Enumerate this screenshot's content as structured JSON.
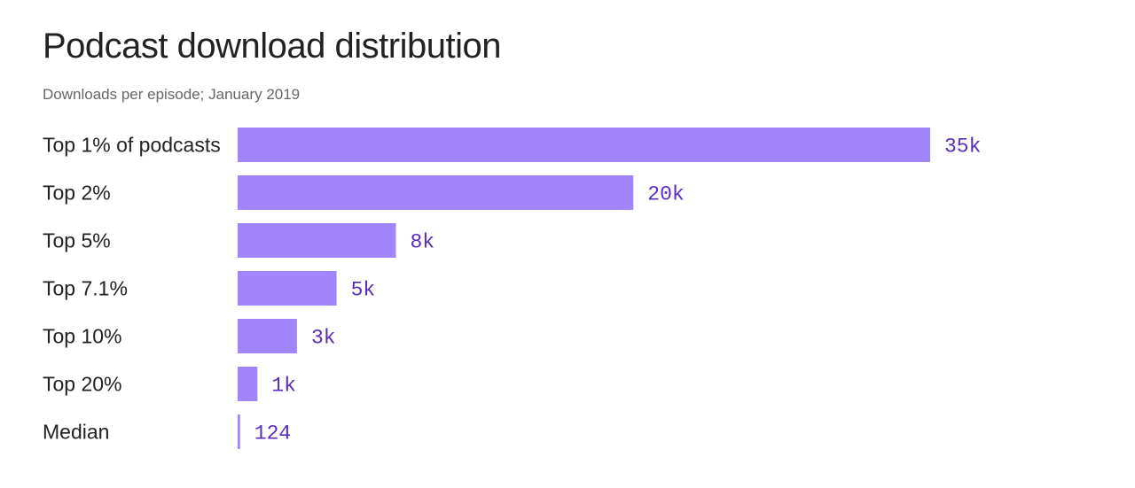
{
  "chart_data": {
    "type": "bar",
    "orientation": "horizontal",
    "title": "Podcast download distribution",
    "subtitle": "Downloads per episode; January 2019",
    "categories": [
      "Top 1% of podcasts",
      "Top 2%",
      "Top 5%",
      "Top 7.1%",
      "Top 10%",
      "Top 20%",
      "Median"
    ],
    "values": [
      35000,
      20000,
      8000,
      5000,
      3000,
      1000,
      124
    ],
    "value_labels": [
      "35k",
      "20k",
      "8k",
      "5k",
      "3k",
      "1k",
      "124"
    ],
    "xlim": [
      0,
      35000
    ],
    "grid": false,
    "bar_color": "#a285fc",
    "label_color": "#5b2bbf"
  }
}
